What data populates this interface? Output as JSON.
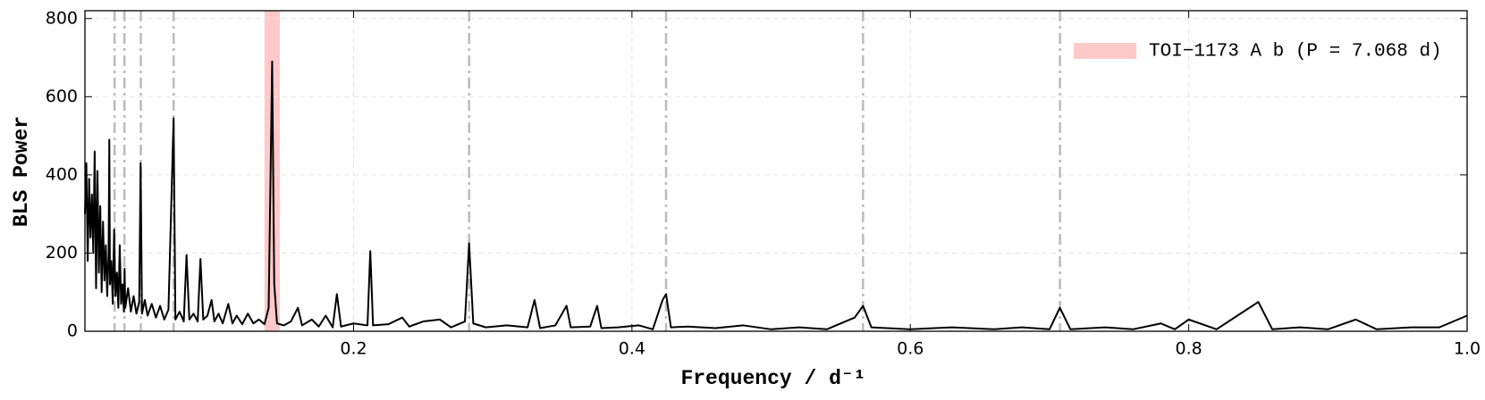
{
  "chart_data": {
    "type": "line",
    "xlabel": "Frequency / d⁻¹",
    "ylabel": "BLS Power",
    "color": "#000000",
    "grid": true,
    "legend_loc": "upper right",
    "xlim": [
      0.007,
      1.0
    ],
    "ylim": [
      0,
      820
    ],
    "xticks": [
      0.2,
      0.4,
      0.6,
      0.8,
      {
        "value": 1,
        "label": "1.0"
      }
    ],
    "yticks": [
      0,
      200,
      400,
      600,
      800
    ],
    "highlight": {
      "name": "TOI−1173 A b (P = 7.068 d)",
      "color": "#ffc9c9",
      "range": [
        0.136,
        0.147
      ]
    },
    "harmonics": {
      "color": "#bbbbbb",
      "values": [
        0.0283,
        0.03538,
        0.04717,
        0.07075,
        0.283,
        0.4245,
        0.566,
        0.7075
      ]
    },
    "x": [
      0.007,
      0.008,
      0.009,
      0.01,
      0.011,
      0.012,
      0.013,
      0.014,
      0.015,
      0.016,
      0.017,
      0.018,
      0.019,
      0.02,
      0.021,
      0.022,
      0.023,
      0.024,
      0.0245,
      0.025,
      0.026,
      0.027,
      0.028,
      0.0285,
      0.029,
      0.03,
      0.031,
      0.032,
      0.033,
      0.034,
      0.035,
      0.0355,
      0.036,
      0.038,
      0.04,
      0.042,
      0.044,
      0.046,
      0.047,
      0.048,
      0.05,
      0.052,
      0.055,
      0.058,
      0.061,
      0.064,
      0.067,
      0.0707,
      0.072,
      0.075,
      0.078,
      0.08,
      0.082,
      0.085,
      0.088,
      0.09,
      0.092,
      0.095,
      0.098,
      0.1,
      0.103,
      0.106,
      0.11,
      0.113,
      0.116,
      0.12,
      0.124,
      0.128,
      0.132,
      0.136,
      0.139,
      0.1415,
      0.143,
      0.145,
      0.15,
      0.155,
      0.16,
      0.163,
      0.17,
      0.175,
      0.18,
      0.185,
      0.188,
      0.191,
      0.2,
      0.21,
      0.212,
      0.214,
      0.225,
      0.235,
      0.24,
      0.25,
      0.262,
      0.27,
      0.28,
      0.283,
      0.286,
      0.295,
      0.31,
      0.325,
      0.33,
      0.334,
      0.345,
      0.353,
      0.356,
      0.37,
      0.375,
      0.378,
      0.39,
      0.405,
      0.415,
      0.422,
      0.4245,
      0.428,
      0.44,
      0.46,
      0.48,
      0.5,
      0.52,
      0.54,
      0.56,
      0.566,
      0.572,
      0.6,
      0.63,
      0.66,
      0.68,
      0.7,
      0.7074,
      0.715,
      0.74,
      0.76,
      0.78,
      0.79,
      0.8,
      0.82,
      0.85,
      0.86,
      0.88,
      0.9,
      0.92,
      0.935,
      0.96,
      0.98,
      1.0
    ],
    "values": [
      300,
      430,
      180,
      390,
      240,
      350,
      200,
      460,
      110,
      410,
      150,
      320,
      100,
      280,
      130,
      220,
      90,
      200,
      490,
      120,
      180,
      70,
      260,
      160,
      90,
      150,
      60,
      220,
      70,
      120,
      50,
      160,
      60,
      110,
      50,
      90,
      45,
      75,
      430,
      45,
      80,
      40,
      70,
      35,
      65,
      30,
      55,
      545,
      30,
      50,
      25,
      195,
      30,
      45,
      25,
      185,
      30,
      40,
      80,
      25,
      45,
      20,
      70,
      20,
      40,
      18,
      45,
      20,
      30,
      18,
      60,
      690,
      120,
      20,
      15,
      25,
      60,
      15,
      30,
      12,
      40,
      10,
      95,
      12,
      20,
      15,
      205,
      15,
      18,
      35,
      12,
      25,
      30,
      10,
      25,
      225,
      20,
      10,
      15,
      10,
      80,
      8,
      15,
      65,
      10,
      12,
      65,
      8,
      10,
      15,
      5,
      80,
      95,
      10,
      12,
      8,
      15,
      5,
      10,
      5,
      35,
      65,
      10,
      5,
      10,
      5,
      10,
      5,
      60,
      5,
      10,
      5,
      20,
      5,
      30,
      5,
      75,
      5,
      10,
      5,
      30,
      5,
      10,
      10,
      40
    ]
  }
}
